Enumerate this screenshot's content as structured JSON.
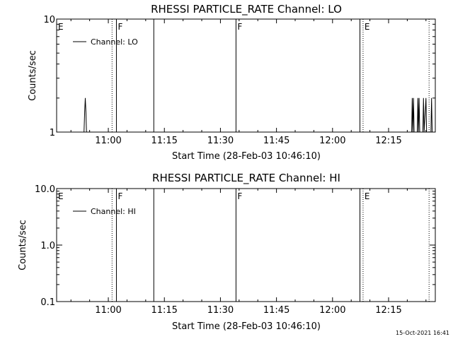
{
  "footer": {
    "timestamp": "15-Oct-2021 16:41"
  },
  "chart_data": [
    {
      "type": "line",
      "title": "RHESSI PARTICLE_RATE Channel: LO",
      "xlabel": "Start Time (28-Feb-03 10:46:10)",
      "ylabel": "Counts/sec",
      "yscale": "log",
      "ylim": [
        1,
        10
      ],
      "y_ticks": [
        {
          "value": 1,
          "label": "1"
        },
        {
          "value": 10,
          "label": "10"
        }
      ],
      "xlim": [
        "10:46:10",
        "12:27:30"
      ],
      "x_ticks": [
        "11:00",
        "11:15",
        "11:30",
        "11:45",
        "12:00",
        "12:15"
      ],
      "legend": {
        "label": "Channel: LO",
        "placement": "top-left"
      },
      "series": [
        {
          "name": "Channel: LO",
          "points": [
            [
              "10:53:30",
              1
            ],
            [
              "10:53:40",
              1.5
            ],
            [
              "10:53:50",
              2
            ],
            [
              "10:54:00",
              1.5
            ],
            [
              "10:54:10",
              1
            ],
            [
              "12:21:10",
              1
            ],
            [
              "12:21:20",
              2
            ],
            [
              "12:21:30",
              1
            ],
            [
              "12:21:40",
              2
            ],
            [
              "12:21:50",
              1
            ],
            [
              "12:22:40",
              1
            ],
            [
              "12:22:50",
              2
            ],
            [
              "12:23:00",
              1
            ],
            [
              "12:23:10",
              2
            ],
            [
              "12:23:20",
              1
            ],
            [
              "12:24:10",
              1
            ],
            [
              "12:24:20",
              2
            ],
            [
              "12:24:30",
              1
            ],
            [
              "12:25:00",
              2
            ],
            [
              "12:25:10",
              1
            ],
            [
              "12:26:20",
              1
            ],
            [
              "12:26:30",
              2
            ],
            [
              "12:26:40",
              1
            ]
          ]
        }
      ],
      "markers": [
        {
          "letter": "E",
          "time": "10:46:10",
          "style": "label"
        },
        {
          "letter": "",
          "time": "11:01:00",
          "style": "dotted"
        },
        {
          "letter": "F",
          "time": "11:02:10",
          "style": "solid"
        },
        {
          "letter": "",
          "time": "11:12:10",
          "style": "solid"
        },
        {
          "letter": "F",
          "time": "11:34:10",
          "style": "solid"
        },
        {
          "letter": "",
          "time": "12:07:20",
          "style": "solid"
        },
        {
          "letter": "E",
          "time": "12:08:10",
          "style": "dotted"
        },
        {
          "letter": "",
          "time": "12:25:50",
          "style": "dotted"
        }
      ]
    },
    {
      "type": "line",
      "title": "RHESSI PARTICLE_RATE Channel: HI",
      "xlabel": "Start Time (28-Feb-03 10:46:10)",
      "ylabel": "Counts/sec",
      "yscale": "log",
      "ylim": [
        0.1,
        10
      ],
      "y_ticks": [
        {
          "value": 0.1,
          "label": "0.1"
        },
        {
          "value": 1,
          "label": "1.0"
        },
        {
          "value": 10,
          "label": "10.0"
        }
      ],
      "xlim": [
        "10:46:10",
        "12:27:30"
      ],
      "x_ticks": [
        "11:00",
        "11:15",
        "11:30",
        "11:45",
        "12:00",
        "12:15"
      ],
      "legend": {
        "label": "Channel: HI",
        "placement": "top-left"
      },
      "series": [
        {
          "name": "Channel: HI",
          "points": []
        }
      ],
      "markers": [
        {
          "letter": "E",
          "time": "10:46:10",
          "style": "label"
        },
        {
          "letter": "",
          "time": "11:01:00",
          "style": "dotted"
        },
        {
          "letter": "F",
          "time": "11:02:10",
          "style": "solid"
        },
        {
          "letter": "",
          "time": "11:12:10",
          "style": "solid"
        },
        {
          "letter": "F",
          "time": "11:34:10",
          "style": "solid"
        },
        {
          "letter": "",
          "time": "12:07:20",
          "style": "solid"
        },
        {
          "letter": "E",
          "time": "12:08:10",
          "style": "dotted"
        },
        {
          "letter": "",
          "time": "12:25:50",
          "style": "dotted"
        }
      ]
    }
  ]
}
